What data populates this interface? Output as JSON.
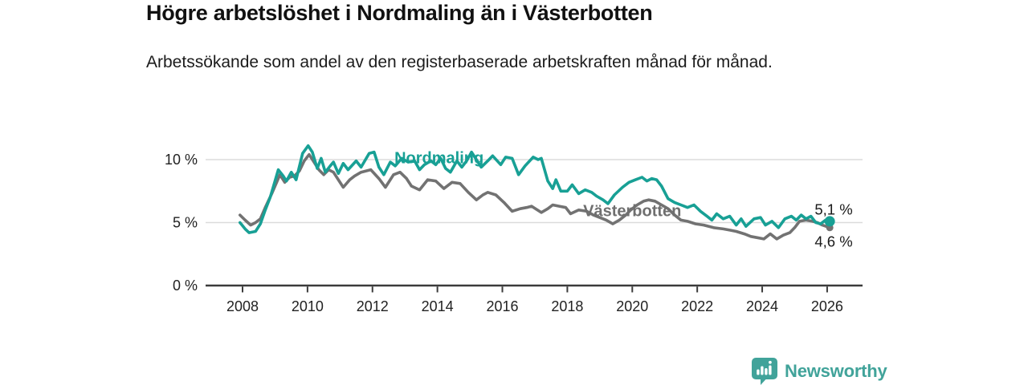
{
  "header": {
    "title": "Högre arbetslöshet i Nordmaling än i Västerbotten",
    "subtitle": "Arbetssökande som andel av den registerbaserade arbetskraften månad för månad."
  },
  "footer": {
    "brand": "Newsworthy",
    "brand_color": "#41a39a",
    "logo_icon": "bar-chart-speech-bubble-icon"
  },
  "colors": {
    "accent_teal": "#18a095",
    "series_gray": "#727272",
    "gridline": "#dbdbdb",
    "axis": "#3b3b3b"
  },
  "chart_data": {
    "type": "line",
    "title": "Högre arbetslöshet i Nordmaling än i Västerbotten",
    "subtitle": "Arbetssökande som andel av den registerbaserade arbetskraften månad för månad.",
    "grid": "horizontal",
    "legend_position": "inline-labels",
    "x_axis": {
      "ticks": [
        2008,
        2010,
        2012,
        2014,
        2016,
        2018,
        2020,
        2022,
        2024,
        2026
      ],
      "range": [
        2007.8,
        2027.1
      ]
    },
    "y_axis": {
      "ticks": [
        {
          "value": 0,
          "label": "0 %"
        },
        {
          "value": 5,
          "label": "5 %"
        },
        {
          "value": 10,
          "label": "10 %"
        }
      ],
      "range": [
        0,
        11.8
      ]
    },
    "series": [
      {
        "name": "Nordmaling",
        "color": "#18a095",
        "label_color": "#18a095",
        "label_pos": [
          2014.05,
          10.15
        ],
        "end_label": "5,1 %",
        "end_value": 5.1,
        "end_label_pos": [
          2026.2,
          6.05
        ],
        "end_dot_r": 6.5,
        "draw_order": 2,
        "points": [
          [
            2007.92,
            5.0
          ],
          [
            2008.08,
            4.5
          ],
          [
            2008.2,
            4.2
          ],
          [
            2008.4,
            4.3
          ],
          [
            2008.55,
            4.9
          ],
          [
            2008.7,
            6.0
          ],
          [
            2008.85,
            7.0
          ],
          [
            2009.0,
            8.3
          ],
          [
            2009.1,
            9.2
          ],
          [
            2009.25,
            8.7
          ],
          [
            2009.35,
            8.3
          ],
          [
            2009.5,
            9.0
          ],
          [
            2009.65,
            8.4
          ],
          [
            2009.85,
            10.5
          ],
          [
            2010.02,
            11.1
          ],
          [
            2010.15,
            10.6
          ],
          [
            2010.3,
            9.3
          ],
          [
            2010.42,
            10.1
          ],
          [
            2010.55,
            9.0
          ],
          [
            2010.7,
            9.5
          ],
          [
            2010.8,
            9.8
          ],
          [
            2010.95,
            8.9
          ],
          [
            2011.1,
            9.7
          ],
          [
            2011.25,
            9.2
          ],
          [
            2011.5,
            9.9
          ],
          [
            2011.65,
            9.4
          ],
          [
            2011.9,
            10.5
          ],
          [
            2012.05,
            10.6
          ],
          [
            2012.2,
            9.4
          ],
          [
            2012.35,
            8.8
          ],
          [
            2012.55,
            9.8
          ],
          [
            2012.7,
            9.5
          ],
          [
            2012.9,
            10.1
          ],
          [
            2013.1,
            9.8
          ],
          [
            2013.3,
            9.9
          ],
          [
            2013.45,
            9.2
          ],
          [
            2013.6,
            9.6
          ],
          [
            2013.8,
            9.9
          ],
          [
            2013.95,
            9.6
          ],
          [
            2014.1,
            10.1
          ],
          [
            2014.25,
            9.3
          ],
          [
            2014.4,
            9.0
          ],
          [
            2014.6,
            9.9
          ],
          [
            2014.75,
            9.4
          ],
          [
            2014.9,
            9.9
          ],
          [
            2015.05,
            10.6
          ],
          [
            2015.2,
            10.0
          ],
          [
            2015.35,
            9.4
          ],
          [
            2015.55,
            9.9
          ],
          [
            2015.7,
            10.3
          ],
          [
            2015.95,
            9.6
          ],
          [
            2016.1,
            10.2
          ],
          [
            2016.3,
            10.1
          ],
          [
            2016.5,
            8.8
          ],
          [
            2016.7,
            9.5
          ],
          [
            2016.95,
            10.2
          ],
          [
            2017.1,
            10.0
          ],
          [
            2017.2,
            10.1
          ],
          [
            2017.4,
            8.3
          ],
          [
            2017.55,
            7.7
          ],
          [
            2017.65,
            8.4
          ],
          [
            2017.8,
            7.5
          ],
          [
            2018.0,
            7.5
          ],
          [
            2018.15,
            8.0
          ],
          [
            2018.35,
            7.3
          ],
          [
            2018.55,
            7.6
          ],
          [
            2018.75,
            7.4
          ],
          [
            2018.9,
            7.1
          ],
          [
            2019.1,
            6.8
          ],
          [
            2019.25,
            6.5
          ],
          [
            2019.45,
            7.2
          ],
          [
            2019.7,
            7.8
          ],
          [
            2019.9,
            8.2
          ],
          [
            2020.1,
            8.4
          ],
          [
            2020.3,
            8.6
          ],
          [
            2020.45,
            8.3
          ],
          [
            2020.6,
            8.5
          ],
          [
            2020.75,
            8.4
          ],
          [
            2020.9,
            7.9
          ],
          [
            2021.1,
            6.9
          ],
          [
            2021.3,
            6.6
          ],
          [
            2021.5,
            6.4
          ],
          [
            2021.7,
            6.2
          ],
          [
            2021.9,
            6.4
          ],
          [
            2022.1,
            5.9
          ],
          [
            2022.3,
            5.5
          ],
          [
            2022.45,
            5.2
          ],
          [
            2022.6,
            5.7
          ],
          [
            2022.8,
            5.3
          ],
          [
            2023.0,
            5.5
          ],
          [
            2023.2,
            4.8
          ],
          [
            2023.35,
            5.3
          ],
          [
            2023.5,
            4.7
          ],
          [
            2023.75,
            5.3
          ],
          [
            2023.95,
            5.4
          ],
          [
            2024.1,
            4.8
          ],
          [
            2024.3,
            5.1
          ],
          [
            2024.5,
            4.6
          ],
          [
            2024.7,
            5.3
          ],
          [
            2024.9,
            5.5
          ],
          [
            2025.05,
            5.2
          ],
          [
            2025.2,
            5.6
          ],
          [
            2025.35,
            5.3
          ],
          [
            2025.5,
            5.5
          ],
          [
            2025.65,
            5.0
          ],
          [
            2025.8,
            4.9
          ],
          [
            2025.95,
            5.2
          ],
          [
            2026.08,
            5.1
          ]
        ]
      },
      {
        "name": "Västerbotten",
        "color": "#727272",
        "label_color": "#6f6f6f",
        "label_pos": [
          2020.0,
          5.95
        ],
        "end_label": "4,6 %",
        "end_value": 4.6,
        "end_label_pos": [
          2026.2,
          3.5
        ],
        "end_dot_r": 4.5,
        "draw_order": 1,
        "points": [
          [
            2007.92,
            5.6
          ],
          [
            2008.08,
            5.2
          ],
          [
            2008.25,
            4.8
          ],
          [
            2008.4,
            5.0
          ],
          [
            2008.55,
            5.3
          ],
          [
            2008.7,
            6.2
          ],
          [
            2008.9,
            7.3
          ],
          [
            2009.05,
            8.2
          ],
          [
            2009.15,
            8.8
          ],
          [
            2009.3,
            8.2
          ],
          [
            2009.45,
            8.6
          ],
          [
            2009.6,
            8.7
          ],
          [
            2009.75,
            9.1
          ],
          [
            2009.9,
            9.9
          ],
          [
            2010.05,
            10.4
          ],
          [
            2010.2,
            9.8
          ],
          [
            2010.35,
            9.2
          ],
          [
            2010.5,
            8.8
          ],
          [
            2010.65,
            9.2
          ],
          [
            2010.8,
            9.0
          ],
          [
            2010.95,
            8.4
          ],
          [
            2011.1,
            7.8
          ],
          [
            2011.3,
            8.4
          ],
          [
            2011.45,
            8.7
          ],
          [
            2011.65,
            9.0
          ],
          [
            2011.95,
            9.2
          ],
          [
            2012.2,
            8.5
          ],
          [
            2012.4,
            7.8
          ],
          [
            2012.65,
            8.8
          ],
          [
            2012.85,
            9.0
          ],
          [
            2013.05,
            8.5
          ],
          [
            2013.2,
            7.9
          ],
          [
            2013.45,
            7.6
          ],
          [
            2013.7,
            8.4
          ],
          [
            2013.95,
            8.3
          ],
          [
            2014.2,
            7.7
          ],
          [
            2014.45,
            8.2
          ],
          [
            2014.7,
            8.1
          ],
          [
            2014.95,
            7.4
          ],
          [
            2015.2,
            6.8
          ],
          [
            2015.4,
            7.2
          ],
          [
            2015.55,
            7.4
          ],
          [
            2015.8,
            7.2
          ],
          [
            2016.05,
            6.6
          ],
          [
            2016.3,
            5.9
          ],
          [
            2016.55,
            6.1
          ],
          [
            2016.75,
            6.2
          ],
          [
            2016.9,
            6.3
          ],
          [
            2017.2,
            5.8
          ],
          [
            2017.4,
            6.1
          ],
          [
            2017.55,
            6.4
          ],
          [
            2017.75,
            6.3
          ],
          [
            2017.95,
            6.2
          ],
          [
            2018.1,
            5.7
          ],
          [
            2018.35,
            6.0
          ],
          [
            2018.6,
            5.9
          ],
          [
            2018.8,
            5.6
          ],
          [
            2019.0,
            5.4
          ],
          [
            2019.2,
            5.2
          ],
          [
            2019.4,
            4.9
          ],
          [
            2019.6,
            5.2
          ],
          [
            2019.8,
            5.6
          ],
          [
            2019.95,
            6.0
          ],
          [
            2020.15,
            6.4
          ],
          [
            2020.35,
            6.7
          ],
          [
            2020.5,
            6.8
          ],
          [
            2020.7,
            6.7
          ],
          [
            2020.9,
            6.4
          ],
          [
            2021.1,
            6.1
          ],
          [
            2021.3,
            5.6
          ],
          [
            2021.5,
            5.2
          ],
          [
            2021.7,
            5.1
          ],
          [
            2021.95,
            4.9
          ],
          [
            2022.2,
            4.8
          ],
          [
            2022.5,
            4.6
          ],
          [
            2022.8,
            4.5
          ],
          [
            2023.0,
            4.4
          ],
          [
            2023.2,
            4.3
          ],
          [
            2023.45,
            4.1
          ],
          [
            2023.65,
            3.9
          ],
          [
            2023.85,
            3.8
          ],
          [
            2024.05,
            3.7
          ],
          [
            2024.25,
            4.1
          ],
          [
            2024.45,
            3.7
          ],
          [
            2024.65,
            4.0
          ],
          [
            2024.85,
            4.2
          ],
          [
            2025.0,
            4.6
          ],
          [
            2025.15,
            5.1
          ],
          [
            2025.35,
            5.2
          ],
          [
            2025.55,
            5.1
          ],
          [
            2025.7,
            5.0
          ],
          [
            2025.85,
            4.8
          ],
          [
            2026.08,
            4.6
          ]
        ]
      }
    ]
  }
}
